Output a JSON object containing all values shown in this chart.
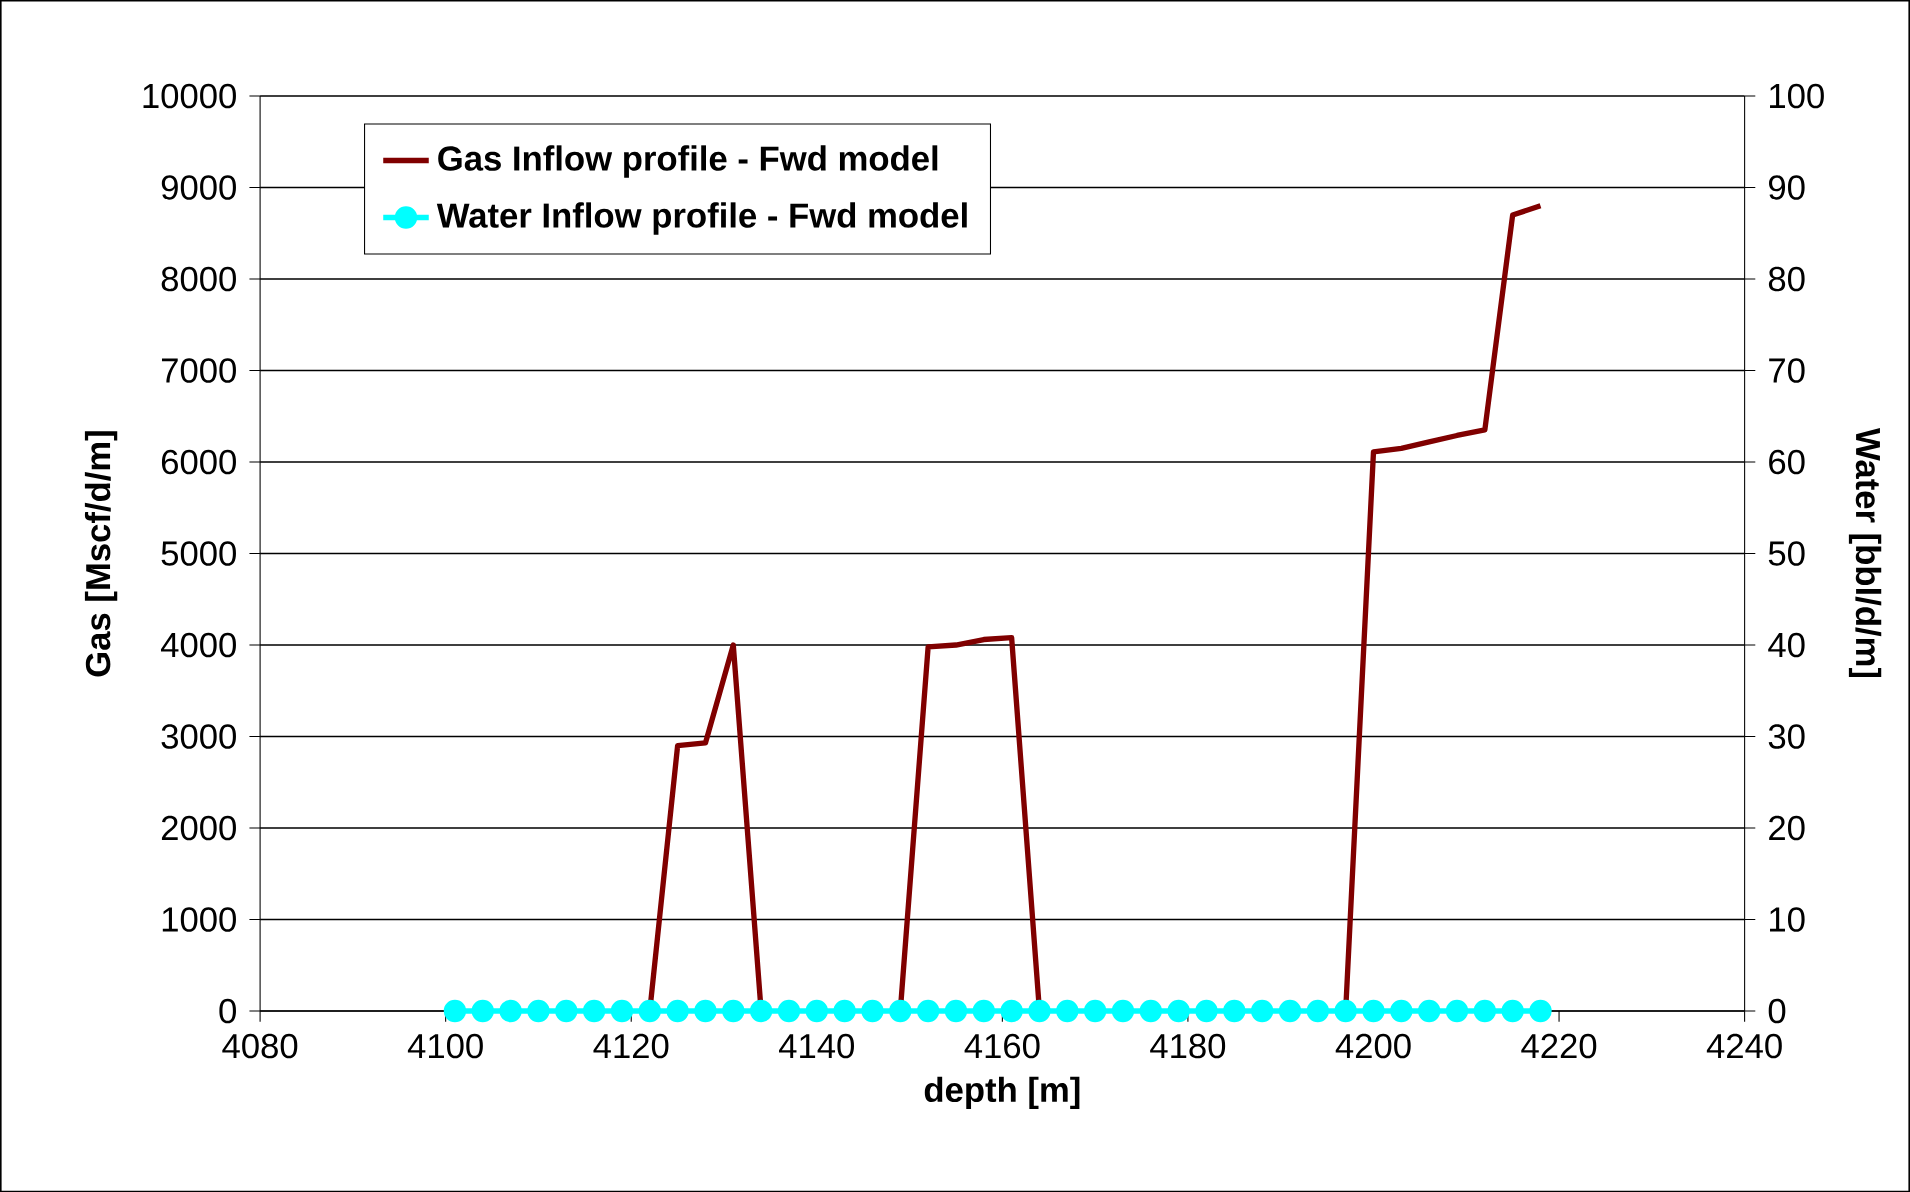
{
  "chart_data": {
    "type": "line",
    "xlabel": "depth [m]",
    "ylabel": "Gas [Mscf/d/m]",
    "y2label": "Water [bbl/d/m]",
    "x": [
      4101,
      4104,
      4107,
      4110,
      4113,
      4116,
      4119,
      4122,
      4125,
      4128,
      4131,
      4134,
      4137,
      4140,
      4143,
      4146,
      4149,
      4152,
      4155,
      4158,
      4161,
      4164,
      4167,
      4170,
      4173,
      4176,
      4179,
      4182,
      4185,
      4188,
      4191,
      4194,
      4197,
      4200,
      4203,
      4206,
      4209,
      4212,
      4215,
      4218
    ],
    "series": [
      {
        "name": "Gas Inflow profile - Fwd model",
        "color": "#800000",
        "marker": "none",
        "values": [
          null,
          null,
          null,
          null,
          null,
          null,
          null,
          0,
          2900,
          2930,
          4000,
          0,
          null,
          null,
          null,
          null,
          0,
          3980,
          4000,
          4060,
          4080,
          0,
          null,
          null,
          null,
          null,
          null,
          null,
          null,
          null,
          null,
          null,
          0,
          6110,
          6150,
          6220,
          6290,
          6350,
          8700,
          8800
        ]
      },
      {
        "name": "Water Inflow profile - Fwd model",
        "color": "#00ffff",
        "marker": "circle",
        "axis": "y2",
        "values": [
          0,
          0,
          0,
          0,
          0,
          0,
          0,
          0,
          0,
          0,
          0,
          0,
          0,
          0,
          0,
          0,
          0,
          0,
          0,
          0,
          0,
          0,
          0,
          0,
          0,
          0,
          0,
          0,
          0,
          0,
          0,
          0,
          0,
          0,
          0,
          0,
          0,
          0,
          0,
          0
        ]
      }
    ],
    "xlim": [
      4080,
      4240
    ],
    "xticks": [
      4080,
      4100,
      4120,
      4140,
      4160,
      4180,
      4200,
      4220,
      4240
    ],
    "ylim": [
      0,
      10000
    ],
    "yticks": [
      0,
      1000,
      2000,
      3000,
      4000,
      5000,
      6000,
      7000,
      8000,
      9000,
      10000
    ],
    "y2lim": [
      0,
      100
    ],
    "y2ticks": [
      0,
      10,
      20,
      30,
      40,
      50,
      60,
      70,
      80,
      90,
      100
    ],
    "grid": "y",
    "legend": "top left",
    "line_style": "solid"
  }
}
